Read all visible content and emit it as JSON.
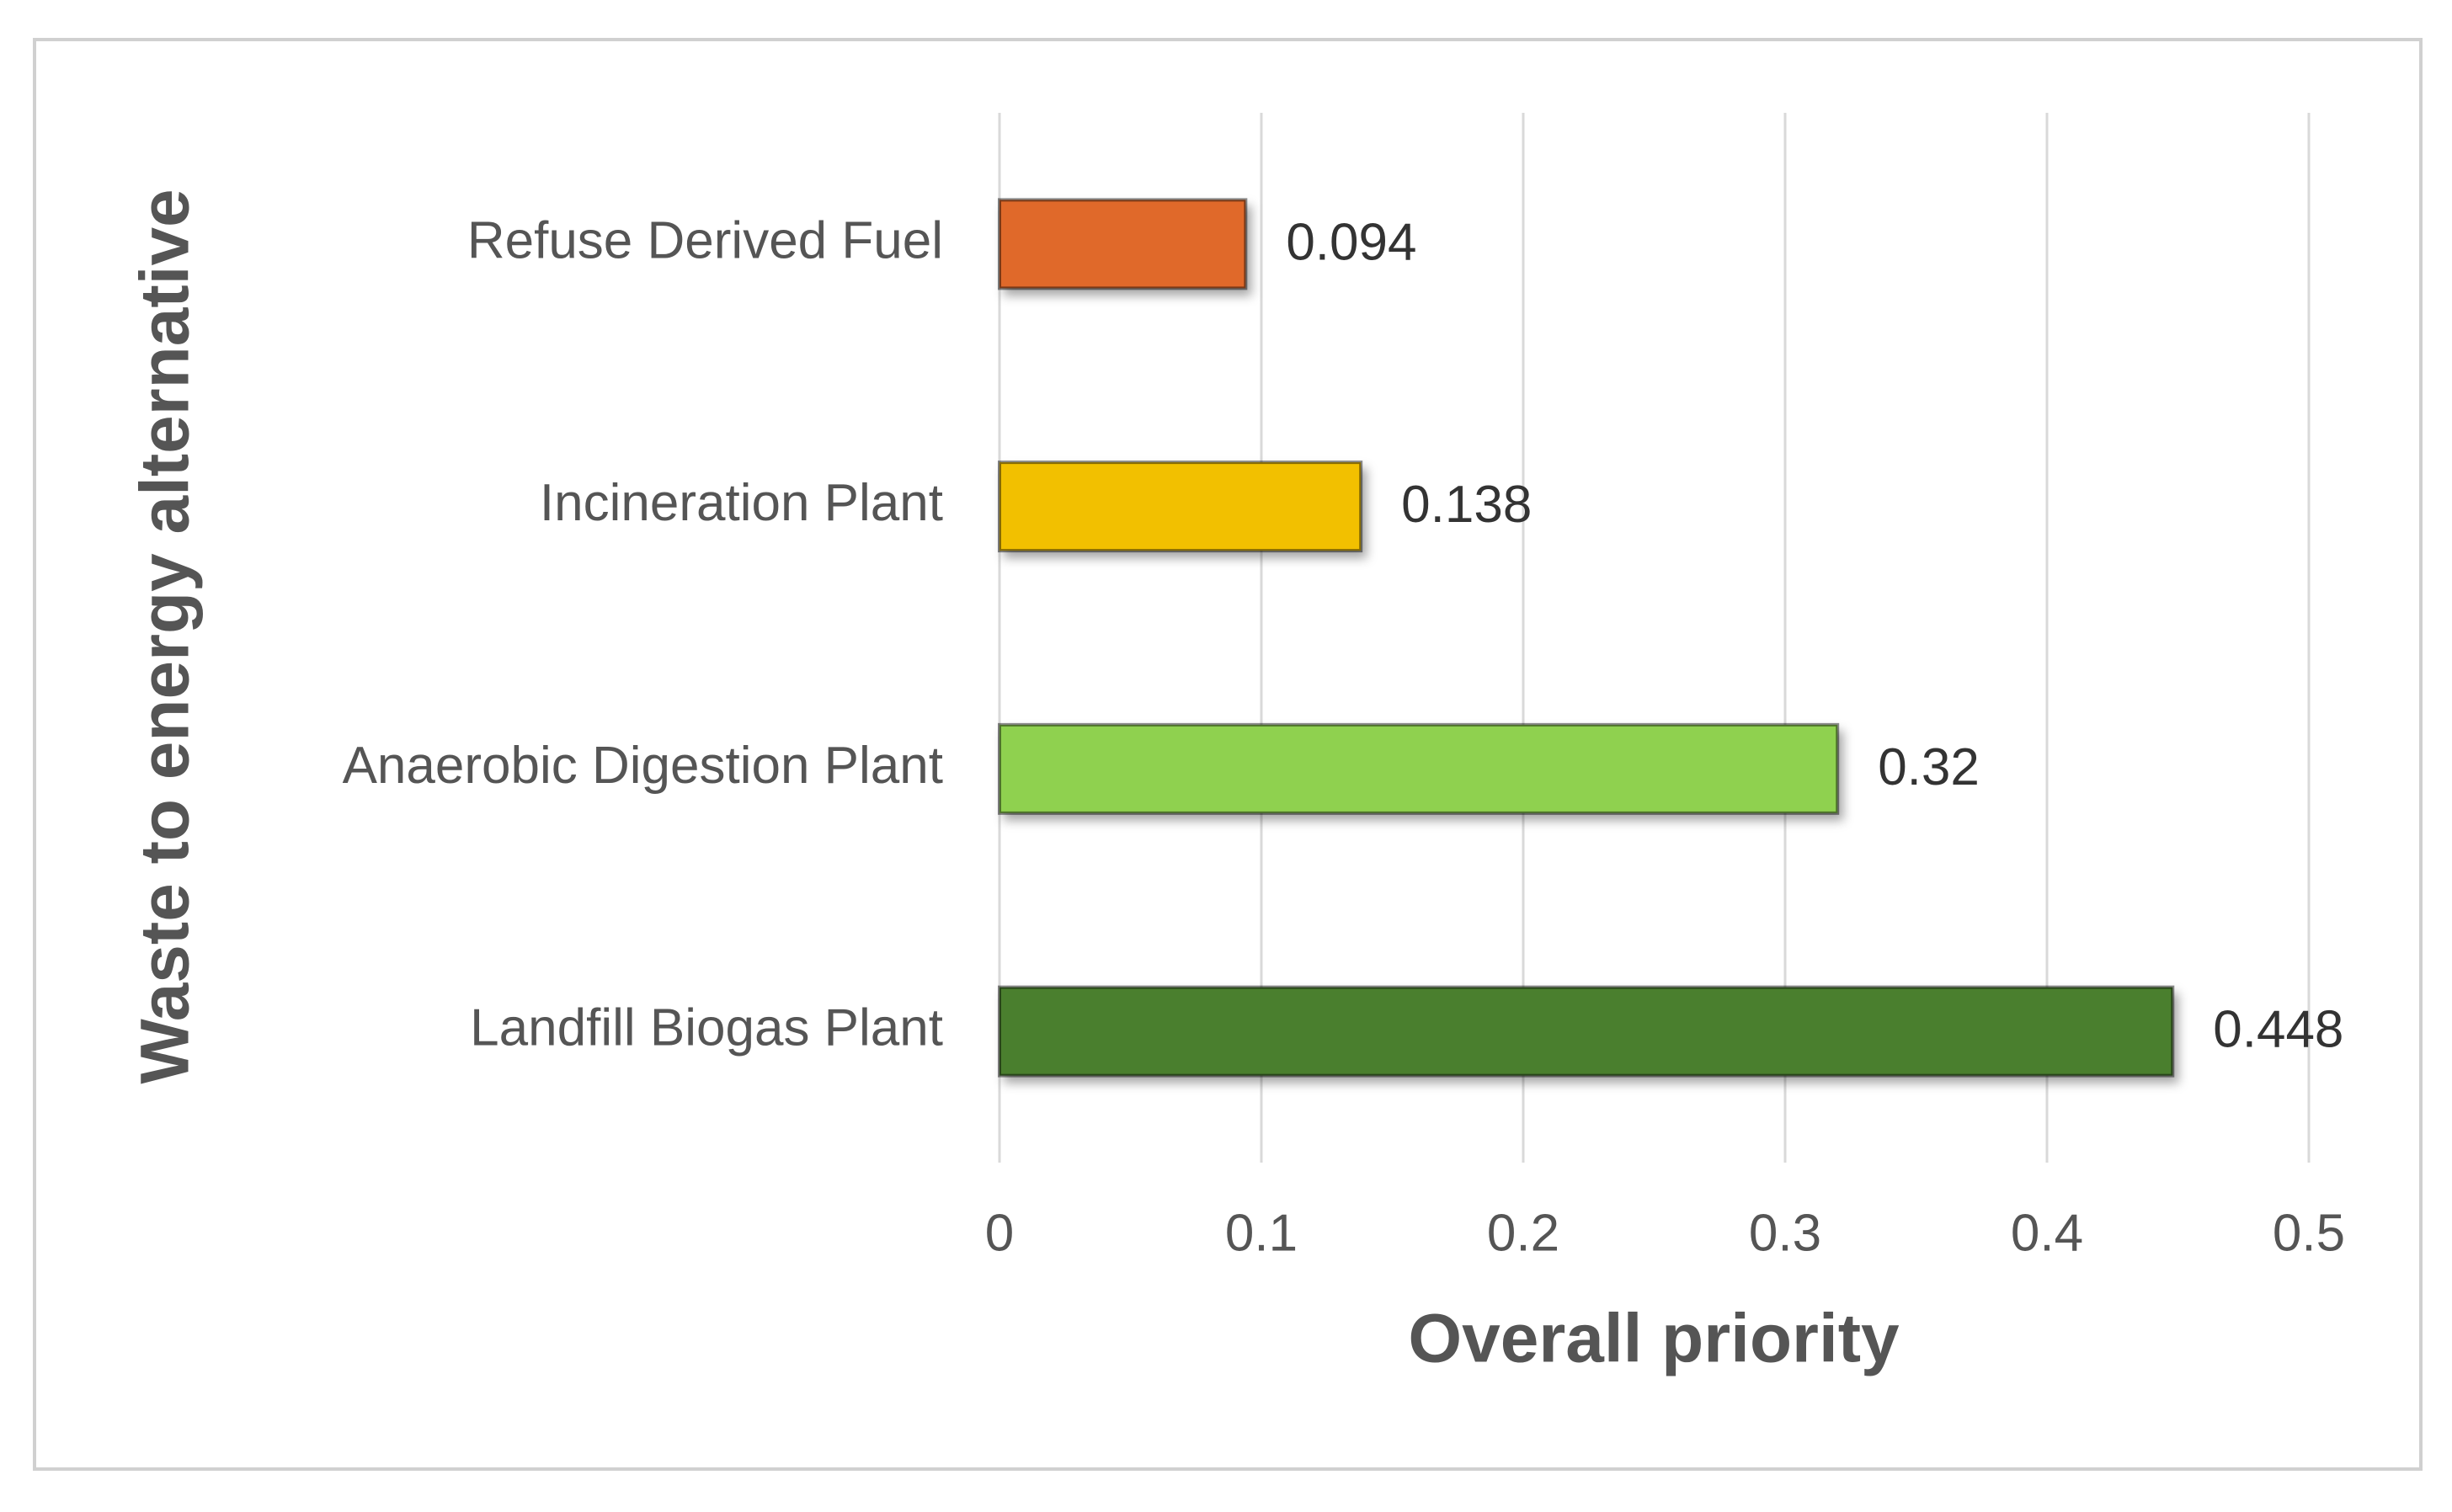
{
  "chart_data": {
    "type": "bar",
    "orientation": "horizontal",
    "x_label": "Overall priority",
    "y_label": "Waste to energy alternative",
    "categories": [
      "Refuse Derived Fuel",
      "Incineration Plant",
      "Anaerobic Digestion Plant",
      "Landfill Biogas Plant"
    ],
    "values": [
      0.094,
      0.138,
      0.32,
      0.448
    ],
    "colors": [
      "#e0692a",
      "#f2c000",
      "#8fd14f",
      "#4a7f2e"
    ],
    "xlim": [
      0,
      0.5
    ],
    "xticks": [
      0,
      0.1,
      0.2,
      0.3,
      0.4,
      0.5
    ],
    "grid": true
  }
}
